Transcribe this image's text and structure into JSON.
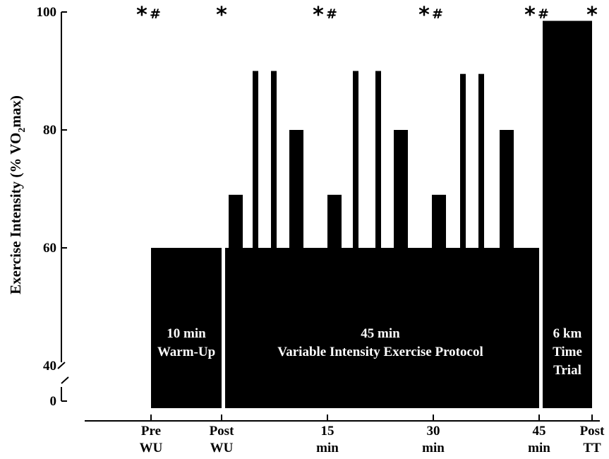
{
  "chart_data": {
    "type": "bar",
    "ylabel_main": "Exercise Intensity (% VO",
    "ylabel_sub": "2",
    "ylabel_end": "max)",
    "y_ticks": [
      "100",
      "80",
      "60",
      "40",
      "0"
    ],
    "ylim": [
      40,
      100
    ],
    "y_axis_break": true,
    "bar_color": "#000000",
    "x_ticks": [
      {
        "line1": "Pre",
        "line2": "WU",
        "time": 0
      },
      {
        "line1": "Post",
        "line2": "WU",
        "time": 10
      },
      {
        "line1": "15",
        "line2": "min",
        "time": 25
      },
      {
        "line1": "30",
        "line2": "min",
        "time": 40
      },
      {
        "line1": "45",
        "line2": "min",
        "time": 55
      },
      {
        "line1": "Post",
        "line2": "TT",
        "time": 62.5
      }
    ],
    "segments": [
      {
        "label": "warm-up",
        "start": 0,
        "end": 10,
        "intensity": 60
      },
      {
        "label": "variable-protocol-base",
        "start": 10.5,
        "end": 55,
        "intensity": 60
      },
      {
        "label": "time-trial",
        "start": 55.5,
        "end": 62.5,
        "intensity": 98.5
      }
    ],
    "peaks": [
      {
        "start": 11.0,
        "end": 13.0,
        "intensity": 69
      },
      {
        "start": 14.4,
        "end": 15.2,
        "intensity": 90
      },
      {
        "start": 17.0,
        "end": 17.8,
        "intensity": 90
      },
      {
        "start": 19.6,
        "end": 21.6,
        "intensity": 80
      },
      {
        "start": 25.0,
        "end": 27.0,
        "intensity": 69
      },
      {
        "start": 28.6,
        "end": 29.4,
        "intensity": 90
      },
      {
        "start": 31.8,
        "end": 32.6,
        "intensity": 90
      },
      {
        "start": 34.4,
        "end": 36.4,
        "intensity": 80
      },
      {
        "start": 39.8,
        "end": 41.8,
        "intensity": 69
      },
      {
        "start": 43.8,
        "end": 44.6,
        "intensity": 89.5
      },
      {
        "start": 46.4,
        "end": 47.2,
        "intensity": 89.5
      },
      {
        "start": 49.4,
        "end": 51.4,
        "intensity": 80
      }
    ],
    "segment_labels": [
      {
        "line1": "10 min",
        "line2": "Warm-Up",
        "line3": "",
        "time": 5
      },
      {
        "line1": "45 min",
        "line2": "Variable Intensity Exercise Protocol",
        "line3": "",
        "time": 32.5
      },
      {
        "line1": "6 km",
        "line2": "Time",
        "line3": "Trial",
        "time": 59
      }
    ],
    "markers": [
      {
        "time": 0,
        "symbols": [
          "*",
          "#"
        ]
      },
      {
        "time": 10,
        "symbols": [
          "*"
        ]
      },
      {
        "time": 25,
        "symbols": [
          "*",
          "#"
        ]
      },
      {
        "time": 40,
        "symbols": [
          "*",
          "#"
        ]
      },
      {
        "time": 55,
        "symbols": [
          "*",
          "#"
        ]
      },
      {
        "time": 62.5,
        "symbols": [
          "*"
        ]
      }
    ]
  }
}
